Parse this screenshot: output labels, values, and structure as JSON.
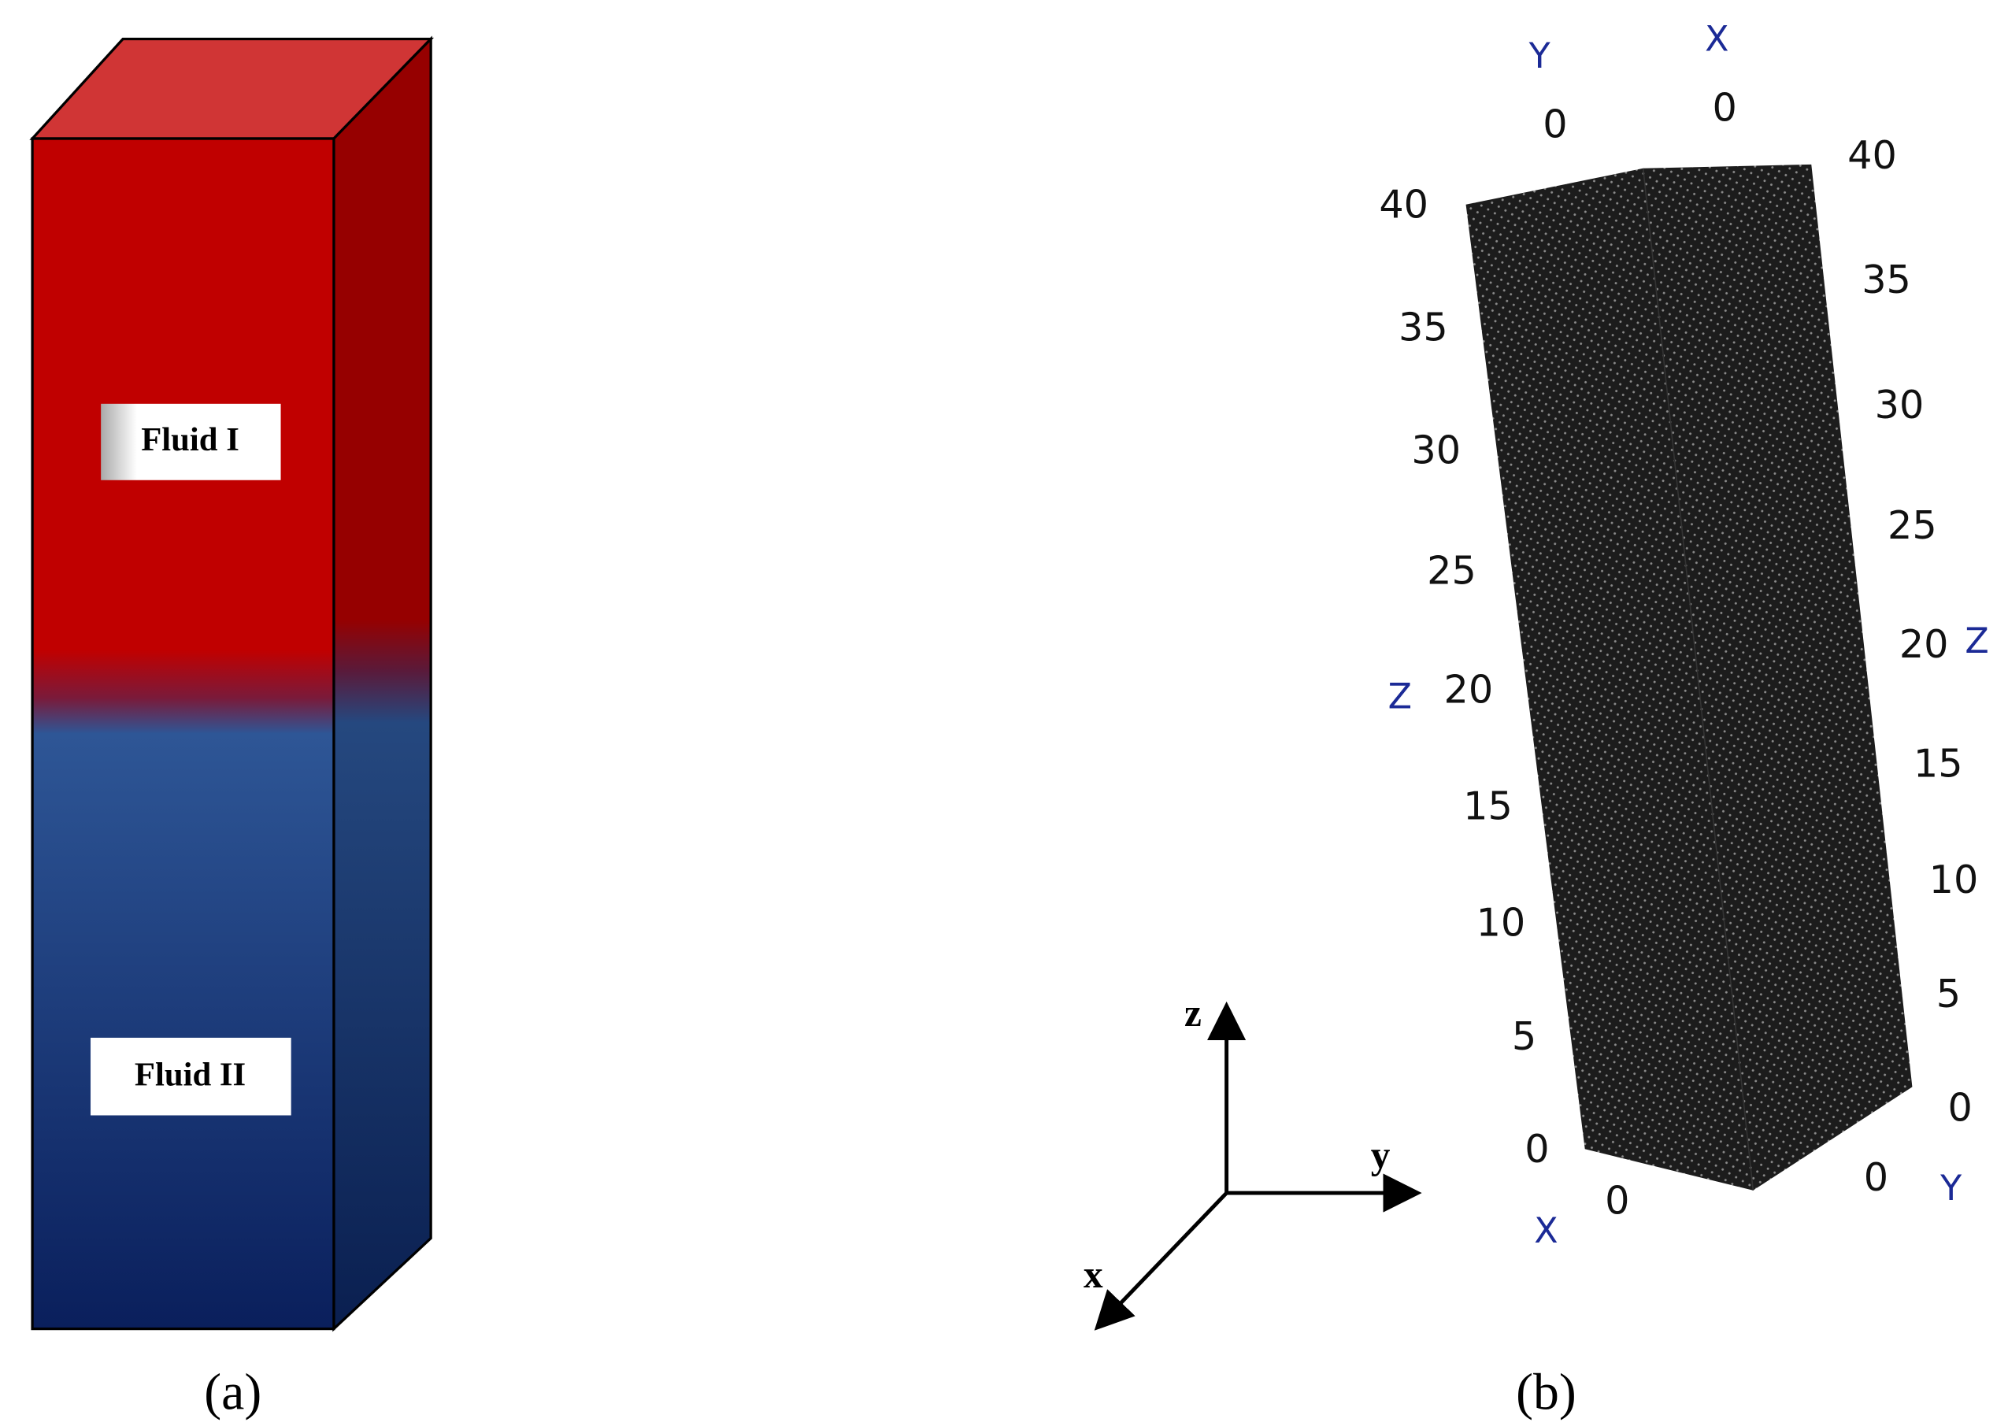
{
  "panel_a": {
    "label": "(a)",
    "fluids": [
      "Fluid I",
      "Fluid II"
    ]
  },
  "panel_b": {
    "label": "(b)",
    "triad": {
      "x": "x",
      "y": "y",
      "z": "z"
    },
    "left_z_ticks": [
      "40",
      "35",
      "30",
      "25",
      "20",
      "15",
      "10",
      "5",
      "0"
    ],
    "right_z_ticks": [
      "40",
      "35",
      "30",
      "25",
      "20",
      "15",
      "10",
      "5",
      "0"
    ],
    "z_axis_labels": [
      "Z",
      "Z"
    ],
    "top_labels": {
      "y_axis": "Y",
      "x_axis": "X",
      "y_zero": "0",
      "x_zero": "0"
    },
    "bottom_labels": {
      "x_axis": "X",
      "x_zero": "0",
      "y_zero": "0",
      "y_axis": "Y"
    }
  }
}
